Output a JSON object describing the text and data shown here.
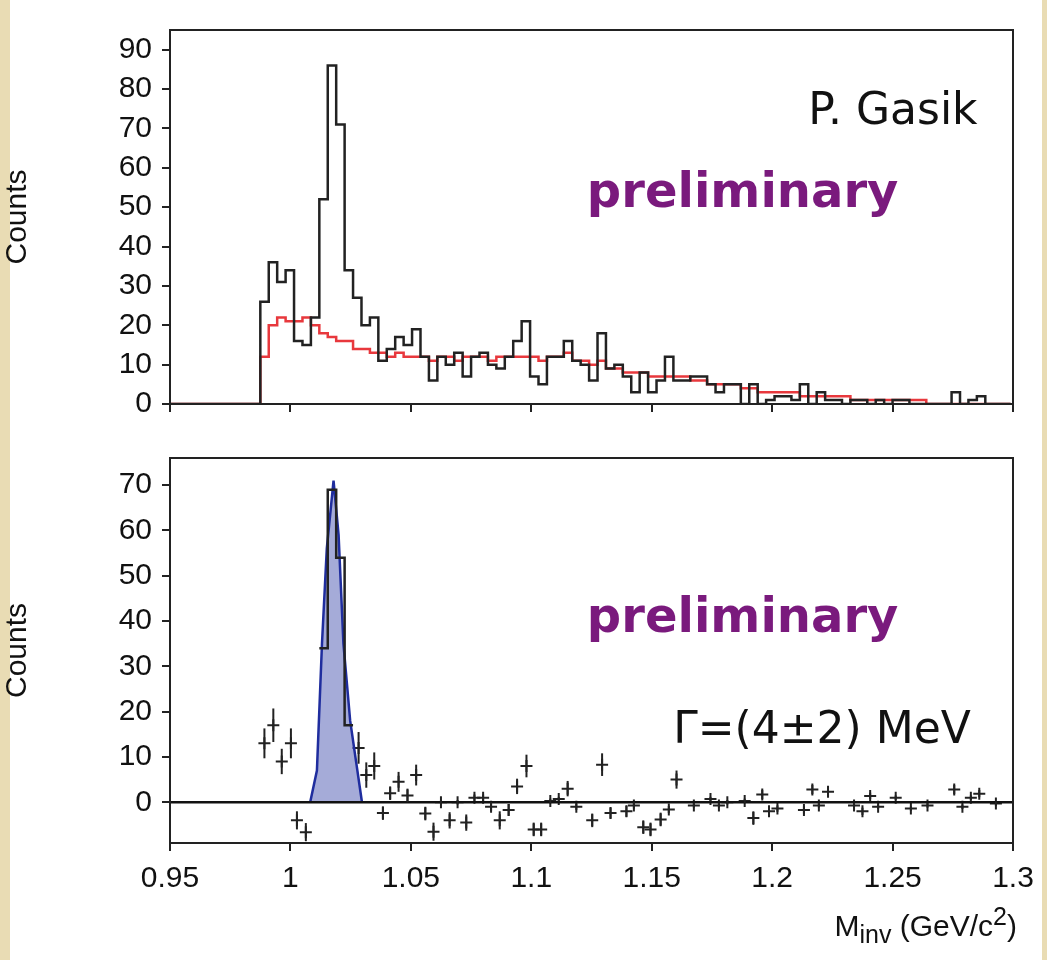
{
  "chart_data": [
    {
      "type": "histogram",
      "ylabel": "Counts",
      "annotations": [
        "P. Gasik",
        "preliminary"
      ],
      "xlim": [
        0.95,
        1.3
      ],
      "xticks": [
        0.95,
        1,
        1.05,
        1.1,
        1.15,
        1.2,
        1.25,
        1.3
      ],
      "ylim": [
        0,
        95
      ],
      "yticks": [
        0,
        10,
        20,
        30,
        40,
        50,
        60,
        70,
        80,
        90
      ],
      "tick_labels": "y",
      "grid": false,
      "bins": [
        0.95,
        0.9875,
        0.991,
        0.9945,
        0.998,
        1.0015,
        1.005,
        1.0085,
        1.012,
        1.0155,
        1.019,
        1.0225,
        1.026,
        1.0295,
        1.033,
        1.0365,
        1.04,
        1.0435,
        1.047,
        1.0505,
        1.054,
        1.0575,
        1.061,
        1.0645,
        1.068,
        1.0715,
        1.075,
        1.0785,
        1.082,
        1.0855,
        1.089,
        1.0925,
        1.096,
        1.0995,
        1.103,
        1.1065,
        1.11,
        1.1135,
        1.117,
        1.1205,
        1.124,
        1.1275,
        1.131,
        1.1345,
        1.138,
        1.1415,
        1.145,
        1.1485,
        1.152,
        1.1555,
        1.159,
        1.1625,
        1.166,
        1.1695,
        1.173,
        1.1765,
        1.18,
        1.1835,
        1.187,
        1.1905,
        1.194,
        1.1975,
        1.201,
        1.2045,
        1.208,
        1.2115,
        1.215,
        1.2185,
        1.222,
        1.2255,
        1.229,
        1.2325,
        1.236,
        1.2395,
        1.243,
        1.2465,
        1.25,
        1.2535,
        1.257,
        1.2605,
        1.264,
        1.2675,
        1.271,
        1.2745,
        1.278,
        1.2815,
        1.285,
        1.2885,
        1.292,
        1.2955,
        1.299
      ],
      "series": [
        {
          "color": "#222222",
          "values": [
            0,
            26,
            36,
            31,
            34,
            16,
            15,
            22,
            52,
            86,
            71,
            34,
            27,
            20,
            22,
            11,
            14,
            17,
            15,
            19,
            12,
            6,
            12,
            10,
            13,
            7,
            12,
            13,
            10,
            9,
            12,
            16,
            21,
            7,
            5,
            12,
            12,
            16,
            11,
            10,
            6,
            18,
            9,
            10,
            7,
            3,
            8,
            3,
            6,
            12,
            6,
            6,
            7,
            7,
            5,
            3,
            5,
            5,
            0,
            5,
            0,
            1,
            2,
            2,
            1,
            5,
            0,
            3,
            1,
            1,
            0,
            1,
            1,
            0,
            1,
            0,
            1,
            1,
            0,
            0,
            0,
            0,
            0,
            3,
            0,
            1,
            2,
            0,
            0,
            0
          ]
        },
        {
          "color": "#e8383d",
          "values": [
            0,
            12,
            20,
            22,
            21,
            21,
            22,
            20,
            18,
            17,
            16,
            16,
            14,
            14,
            13,
            13,
            12,
            13,
            12,
            12,
            12,
            11,
            12,
            12,
            11,
            12,
            12,
            12,
            11,
            12,
            12,
            12,
            12,
            12,
            11,
            12,
            12,
            13,
            11,
            11,
            10,
            11,
            9,
            9,
            8,
            8,
            8,
            7,
            7,
            7,
            7,
            7,
            6,
            6,
            5,
            5,
            5,
            5,
            4,
            4,
            3,
            3,
            3,
            3,
            3,
            2,
            2,
            2,
            2,
            2,
            2,
            1,
            1,
            1,
            1,
            1,
            1,
            1,
            1,
            1,
            0,
            0,
            0,
            0,
            0,
            0,
            0,
            0,
            0,
            0
          ]
        }
      ]
    },
    {
      "type": "scatter",
      "ylabel": "Counts",
      "xlabel": "M$_{inv}$ (GeV/c$^{2}$)",
      "annotations": [
        "preliminary",
        "Γ=(4±2) MeV"
      ],
      "xlim": [
        0.95,
        1.3
      ],
      "xticks": [
        0.95,
        1,
        1.05,
        1.1,
        1.15,
        1.2,
        1.25,
        1.3
      ],
      "ylim": [
        -9,
        76
      ],
      "yticks": [
        0,
        10,
        20,
        30,
        40,
        50,
        60,
        70
      ],
      "grid": false,
      "ref_lines": [
        {
          "axis": "y",
          "value": 0
        }
      ],
      "series": [
        {
          "type": "histogram",
          "color": "#222222",
          "bins": [
            1.012,
            1.0155,
            1.019,
            1.0225,
            1.026
          ],
          "values": [
            34,
            69,
            54,
            17
          ]
        },
        {
          "type": "area",
          "color": "#1f2d9e",
          "x": [
            1.0082,
            1.011,
            1.0131,
            1.0151,
            1.0179,
            1.02,
            1.022,
            1.0248,
            1.0297
          ],
          "values": [
            0,
            7,
            35,
            56,
            71,
            59,
            35,
            18,
            0
          ]
        },
        {
          "color": "#222222",
          "marker": "cross",
          "x": [
            0.9892,
            0.9929,
            0.9964,
            1.0002,
            1.0027,
            1.0064,
            1.0283,
            1.0315,
            1.0348,
            1.0384,
            1.0414,
            1.0449,
            1.0486,
            1.0522,
            1.056,
            1.0594,
            1.0625,
            1.0661,
            1.0694,
            1.073,
            1.0764,
            1.08,
            1.0833,
            1.0869,
            1.0906,
            1.0941,
            1.098,
            1.101,
            1.1041,
            1.1079,
            1.1114,
            1.1151,
            1.1187,
            1.1253,
            1.1294,
            1.1329,
            1.1395,
            1.1426,
            1.1465,
            1.1495,
            1.1537,
            1.1571,
            1.1603,
            1.1675,
            1.1744,
            1.1779,
            1.1814,
            1.1886,
            1.1922,
            1.1959,
            1.1987,
            1.2022,
            1.2132,
            1.2167,
            1.2194,
            1.2232,
            1.234,
            1.2375,
            1.2407,
            1.244,
            1.2513,
            1.2576,
            1.2645,
            1.2756,
            1.279,
            1.2825,
            1.286,
            1.2929
          ],
          "values": [
            13,
            17,
            9,
            13,
            -4,
            -6.6,
            12,
            6,
            8,
            -2.4,
            2,
            4.5,
            1.5,
            6,
            -2.5,
            -6.5,
            0,
            -4,
            0,
            -4.5,
            1,
            1,
            -1,
            -4,
            -1.7,
            3.5,
            8,
            -6,
            -6,
            0.3,
            0.7,
            3,
            -1,
            -4,
            8.3,
            -2.4,
            -2,
            -0.7,
            -5.5,
            -6,
            -3.8,
            -1.6,
            5,
            -0.7,
            0.7,
            -0.7,
            0,
            0.3,
            -3.5,
            1.7,
            -2,
            -1.4,
            -1.7,
            2.8,
            -0.7,
            2.3,
            -0.7,
            -2,
            1.4,
            -1,
            1,
            -1.4,
            -0.7,
            2.8,
            -1,
            1,
            1.9,
            -0.3
          ],
          "errors": [
            3.3,
            3.7,
            2.8,
            3.3,
            2,
            2,
            3.5,
            2.8,
            3,
            1.5,
            1.5,
            2.2,
            1.5,
            2.3,
            1.5,
            2,
            0.5,
            1.8,
            0.5,
            1.8,
            0.7,
            0.7,
            1,
            2,
            1.3,
            1.7,
            2.5,
            1.5,
            1.5,
            0.5,
            0.5,
            1.7,
            0.7,
            1.5,
            2.5,
            1.2,
            1.2,
            0.7,
            1.5,
            1.5,
            1.5,
            0.8,
            2,
            0.5,
            0.5,
            0.5,
            0.5,
            0.5,
            1.5,
            1,
            1,
            0.7,
            0.8,
            1,
            0.5,
            1,
            0.5,
            0.8,
            0.7,
            0.5,
            0.5,
            0.5,
            0.5,
            1,
            0.5,
            0.5,
            0.8,
            0.5
          ]
        }
      ]
    }
  ]
}
